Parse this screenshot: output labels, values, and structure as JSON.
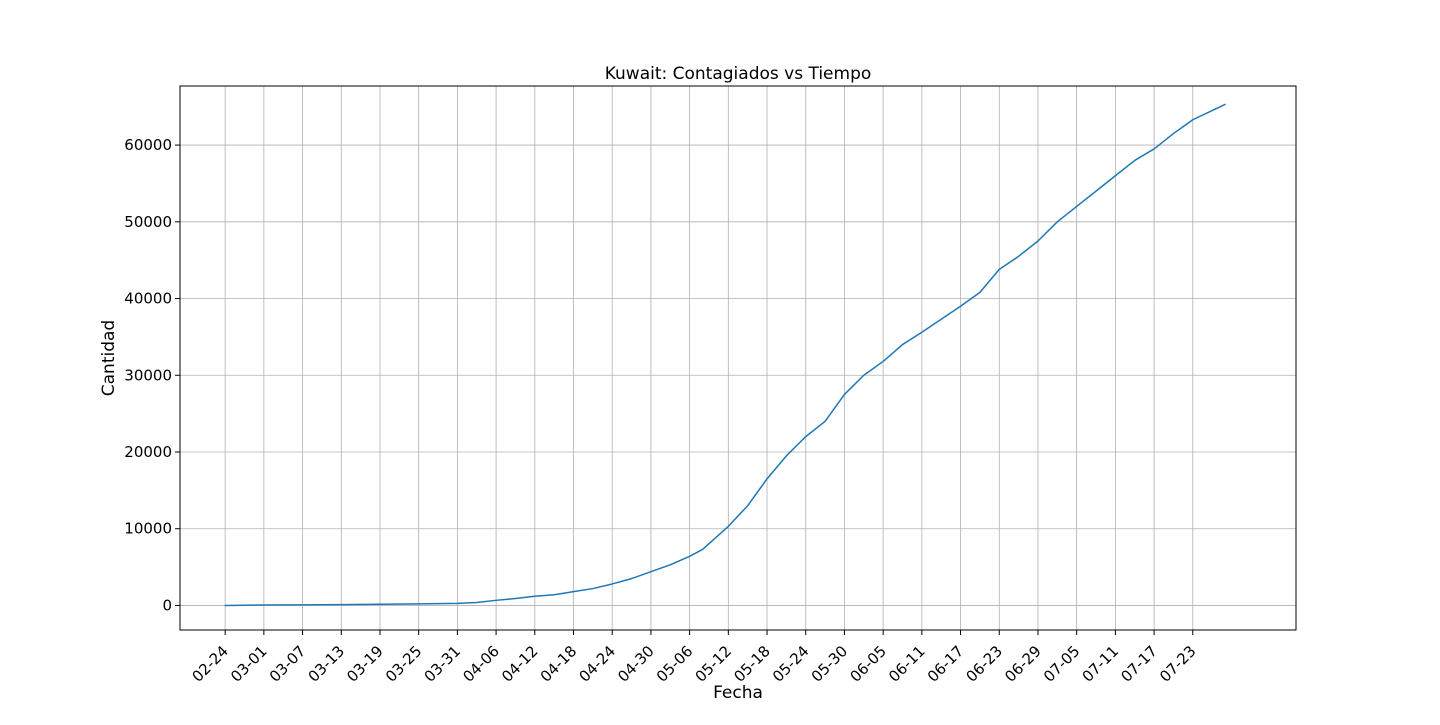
{
  "chart_data": {
    "type": "line",
    "title": "Kuwait: Contagiados vs Tiempo",
    "xlabel": "Fecha",
    "ylabel": "Cantidad",
    "grid": true,
    "x_tick_labels": [
      "02-24",
      "03-01",
      "03-07",
      "03-13",
      "03-19",
      "03-25",
      "03-31",
      "04-06",
      "04-12",
      "04-18",
      "04-24",
      "04-30",
      "05-06",
      "05-12",
      "05-18",
      "05-24",
      "05-30",
      "06-05",
      "06-11",
      "06-17",
      "06-23",
      "06-29",
      "07-05",
      "07-11",
      "07-17",
      "07-23"
    ],
    "y_ticks": [
      0,
      10000,
      20000,
      30000,
      40000,
      50000,
      60000
    ],
    "ylim": [
      -3200,
      67700
    ],
    "xlim": [
      "02-17",
      "08-08"
    ],
    "series": [
      {
        "color": "#1f77b4",
        "x": [
          "02-24",
          "03-01",
          "03-07",
          "03-13",
          "03-19",
          "03-25",
          "03-31",
          "04-03",
          "04-06",
          "04-09",
          "04-12",
          "04-15",
          "04-18",
          "04-21",
          "04-24",
          "04-27",
          "04-30",
          "05-03",
          "05-06",
          "05-08",
          "05-10",
          "05-12",
          "05-15",
          "05-18",
          "05-21",
          "05-24",
          "05-27",
          "05-30",
          "06-02",
          "06-05",
          "06-08",
          "06-11",
          "06-14",
          "06-17",
          "06-20",
          "06-23",
          "06-26",
          "06-29",
          "07-02",
          "07-05",
          "07-08",
          "07-11",
          "07-14",
          "07-17",
          "07-20",
          "07-23",
          "07-26",
          "07-28"
        ],
        "y": [
          0,
          50,
          70,
          100,
          160,
          200,
          270,
          380,
          670,
          900,
          1200,
          1400,
          1800,
          2200,
          2800,
          3500,
          4400,
          5300,
          6400,
          7300,
          8800,
          10300,
          13000,
          16500,
          19500,
          22000,
          24000,
          27500,
          30000,
          31800,
          34000,
          35600,
          37300,
          39000,
          40800,
          43800,
          45500,
          47500,
          50000,
          52000,
          54000,
          56000,
          58000,
          59500,
          61500,
          63300,
          64500,
          65300
        ]
      }
    ]
  }
}
